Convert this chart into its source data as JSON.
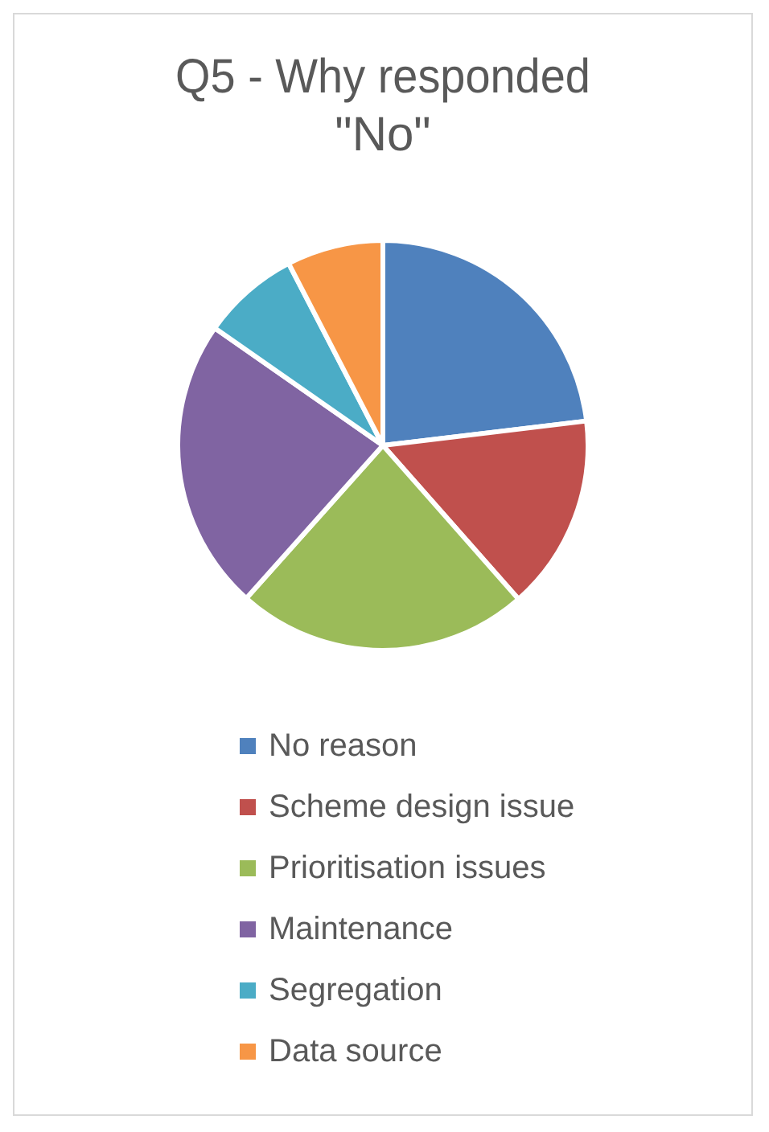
{
  "chart_data": {
    "type": "pie",
    "title": "Q5 - Why responded \"No\"",
    "categories": [
      "No reason",
      "Scheme design issue",
      "Prioritisation issues",
      "Maintenance",
      "Segregation",
      "Data source"
    ],
    "values": [
      23.1,
      15.4,
      23.1,
      23.1,
      7.7,
      7.6
    ],
    "colors": [
      "#4f81bd",
      "#c0504d",
      "#9bbb59",
      "#8064a2",
      "#4bacc6",
      "#f79646"
    ],
    "legend": "bottom"
  }
}
